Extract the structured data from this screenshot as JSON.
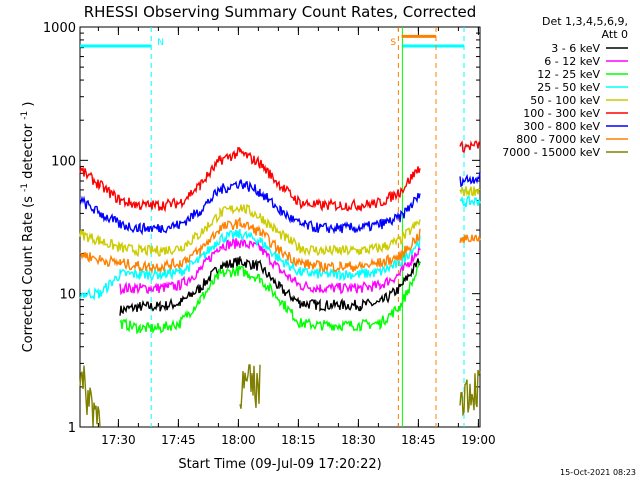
{
  "chart_data": {
    "type": "line",
    "title": "RHESSI Observing Summary Count Rates, Corrected",
    "xlabel": "Start Time (09-Jul-09 17:20:22)",
    "ylabel": "Corrected Count Rate (s⁻¹ detector⁻¹)",
    "ylabel_main": "Corrected Count Rate (s",
    "ylabel_mid": " detector",
    "ylabel_end": ")",
    "ylabel_sup": "-1",
    "y_scale": "log",
    "ylim": [
      1,
      1000
    ],
    "xlim_minutes": [
      0,
      100
    ],
    "x_ticks": [
      {
        "m": 9.6,
        "label": "17:30"
      },
      {
        "m": 24.6,
        "label": "17:45"
      },
      {
        "m": 39.6,
        "label": "18:00"
      },
      {
        "m": 54.6,
        "label": "18:15"
      },
      {
        "m": 69.6,
        "label": "18:30"
      },
      {
        "m": 84.6,
        "label": "18:45"
      },
      {
        "m": 99.6,
        "label": "19:00"
      }
    ],
    "y_ticks": [
      {
        "v": 1,
        "label": "1"
      },
      {
        "v": 10,
        "label": "10"
      },
      {
        "v": 100,
        "label": "100"
      },
      {
        "v": 1000,
        "label": "1000"
      }
    ],
    "legend_header": [
      "Det 1,3,4,5,6,9,",
      "Att 0"
    ],
    "legend_placement": "right",
    "series": [
      {
        "name": "3 - 6 keV",
        "color": "#000000",
        "v": [
          null,
          null,
          7.5,
          8,
          8,
          8.5,
          11,
          16,
          17.5,
          16,
          11,
          8.5,
          8.2,
          8.2,
          8.2,
          8.5,
          11,
          18,
          null,
          null,
          null
        ]
      },
      {
        "name": "6 - 12 keV",
        "color": "#ff00ff",
        "v": [
          null,
          null,
          11,
          11,
          11,
          11.5,
          15,
          23,
          24,
          22,
          15,
          11.5,
          11,
          11,
          11,
          11.5,
          14,
          22,
          null,
          null,
          null
        ]
      },
      {
        "name": "12 - 25 keV",
        "color": "#00ff00",
        "v": [
          null,
          null,
          6,
          5.5,
          5.5,
          6,
          9,
          14,
          15,
          13,
          9,
          6,
          5.8,
          5.8,
          5.8,
          6,
          8,
          16,
          null,
          null,
          null
        ]
      },
      {
        "name": "25 - 50 keV",
        "color": "#00ffff",
        "v": [
          10,
          10,
          14,
          14,
          14,
          14.5,
          18,
          26,
          28,
          25,
          18,
          14.5,
          14,
          14,
          14,
          14.5,
          17,
          25,
          null,
          48,
          50
        ]
      },
      {
        "name": "50 - 100 keV",
        "color": "#cccc00",
        "v": [
          28,
          25,
          22,
          21,
          21,
          22,
          28,
          40,
          45,
          38,
          28,
          22,
          21,
          21,
          21,
          22,
          25,
          35,
          null,
          58,
          60
        ]
      },
      {
        "name": "100 - 300 keV",
        "color": "#ff0000",
        "v": [
          85,
          65,
          50,
          46,
          46,
          48,
          65,
          100,
          115,
          95,
          65,
          48,
          46,
          46,
          46,
          48,
          58,
          90,
          null,
          125,
          130
        ]
      },
      {
        "name": "300 - 800 keV",
        "color": "#0000ff",
        "v": [
          50,
          40,
          33,
          31,
          31,
          33,
          42,
          60,
          68,
          58,
          42,
          33,
          31,
          31,
          31,
          33,
          37,
          55,
          null,
          70,
          75
        ]
      },
      {
        "name": "800 - 7000 keV",
        "color": "#ff8000",
        "v": [
          20,
          18,
          17,
          16,
          16,
          17,
          21,
          31,
          34,
          29,
          21,
          17,
          16,
          16,
          16,
          17,
          19,
          28,
          null,
          25,
          27
        ]
      },
      {
        "name": "7000 - 15000 keV",
        "color": "#808000",
        "v": [
          2.2,
          1.2,
          null,
          null,
          null,
          null,
          null,
          null,
          2,
          2,
          null,
          null,
          null,
          null,
          null,
          null,
          null,
          null,
          null,
          1.8,
          2
        ]
      }
    ],
    "annotations": [
      {
        "type": "hline",
        "label": "",
        "color": "#00ffff",
        "x0": 0,
        "x1": 17.8,
        "y": 720
      },
      {
        "type": "vline",
        "label": "N",
        "color": "#00ffff",
        "x": 17.8
      },
      {
        "type": "vline",
        "label": "",
        "color": "#00ffff",
        "x": 96
      },
      {
        "type": "hline",
        "label": "",
        "color": "#00ffff",
        "x0": 80.6,
        "x1": 96,
        "y": 720
      },
      {
        "type": "vline",
        "label": "",
        "color": "#00ff00",
        "x": 80.6
      },
      {
        "type": "vline",
        "label": "S",
        "color": "#ff8000",
        "x": 79.6
      },
      {
        "type": "hline",
        "label": "",
        "color": "#ff8000",
        "x0": 80.4,
        "x1": 89,
        "y": 850
      },
      {
        "type": "vline",
        "label": "",
        "color": "#ff8000",
        "x": 89
      }
    ],
    "footer_date": "15-Oct-2021 08:23"
  }
}
